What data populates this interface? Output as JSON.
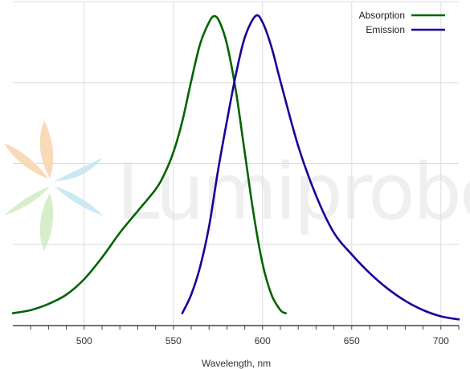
{
  "watermark": {
    "brand": "Lumiprobe"
  },
  "chart_data": {
    "type": "line",
    "title": "",
    "xlabel": "Wavelength, nm",
    "ylabel": "",
    "xlim": [
      460,
      710
    ],
    "ylim": [
      0,
      1
    ],
    "xticks": [
      500,
      550,
      600,
      650,
      700
    ],
    "xtick_labels": [
      "500",
      "550",
      "600",
      "650",
      "700"
    ],
    "grid": true,
    "legend_position": "top-right",
    "series": [
      {
        "name": "Absorption",
        "color": "#006400",
        "x": [
          460,
          470,
          480,
          490,
          500,
          510,
          520,
          530,
          540,
          545,
          550,
          555,
          560,
          565,
          570,
          573,
          576,
          580,
          585,
          590,
          595,
          600,
          605,
          610,
          613
        ],
        "y": [
          0.04,
          0.05,
          0.07,
          0.1,
          0.15,
          0.22,
          0.3,
          0.37,
          0.44,
          0.49,
          0.56,
          0.66,
          0.79,
          0.91,
          0.98,
          1.0,
          0.98,
          0.91,
          0.76,
          0.56,
          0.36,
          0.2,
          0.1,
          0.05,
          0.04
        ]
      },
      {
        "name": "Emission",
        "color": "#1a0099",
        "x": [
          555,
          560,
          565,
          570,
          575,
          580,
          585,
          590,
          596,
          600,
          605,
          610,
          620,
          630,
          640,
          650,
          660,
          670,
          680,
          690,
          700,
          710
        ],
        "y": [
          0.04,
          0.1,
          0.19,
          0.32,
          0.5,
          0.66,
          0.81,
          0.93,
          1.0,
          0.98,
          0.9,
          0.79,
          0.58,
          0.42,
          0.3,
          0.23,
          0.17,
          0.12,
          0.08,
          0.05,
          0.03,
          0.02
        ]
      }
    ]
  }
}
